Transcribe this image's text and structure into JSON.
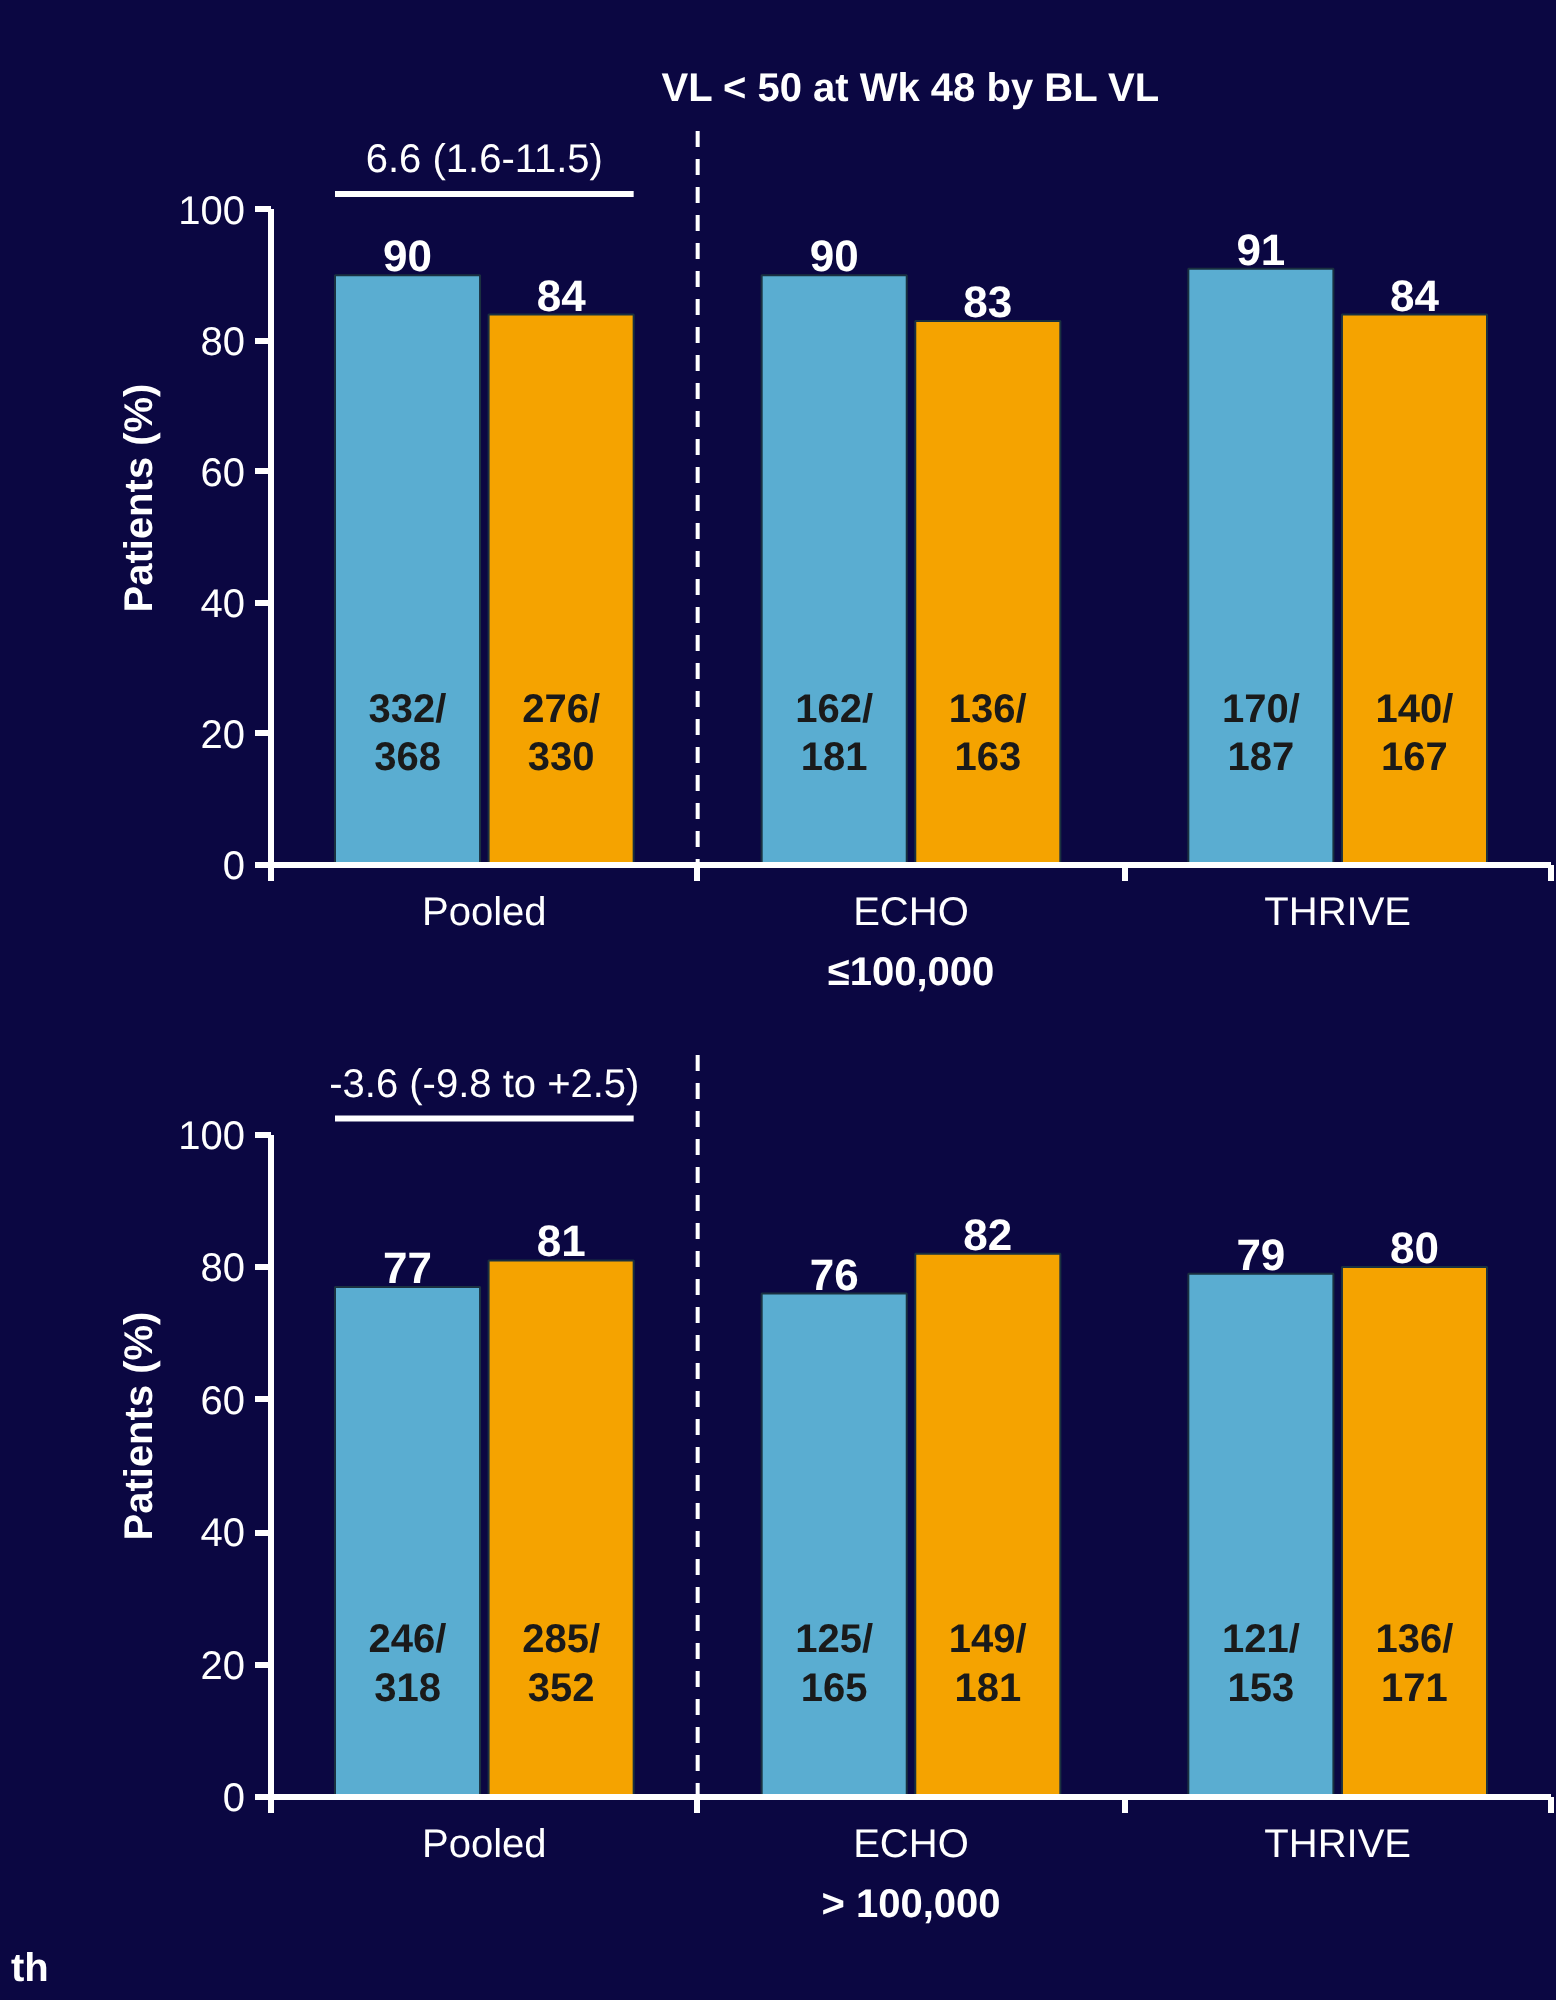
{
  "chart_data": [
    {
      "type": "bar",
      "title": "VL < 50 at Wk 48 by BL VL",
      "xlabel": "≤100,000",
      "ylabel": "Patients (%)",
      "categories": [
        "Pooled",
        "ECHO",
        "THRIVE"
      ],
      "series": [
        {
          "color": "#5aadd1",
          "values": [
            90,
            90,
            91
          ]
        },
        {
          "color": "#f5a300",
          "values": [
            84,
            83,
            84
          ]
        }
      ],
      "ylim": [
        0,
        100
      ],
      "yticks": [
        0,
        20,
        40,
        60,
        80,
        100
      ],
      "data_labels": true,
      "grid": false,
      "annotations": [
        "6.6 (1.6-11.5)",
        "332/\n368",
        "276/\n330",
        "162/\n181",
        "136/\n163",
        "170/\n187",
        "140/\n167"
      ]
    },
    {
      "type": "bar",
      "xlabel": "> 100,000",
      "ylabel": "Patients (%)",
      "categories": [
        "Pooled",
        "ECHO",
        "THRIVE"
      ],
      "series": [
        {
          "color": "#5aadd1",
          "values": [
            77,
            76,
            79
          ]
        },
        {
          "color": "#f5a300",
          "values": [
            81,
            82,
            80
          ]
        }
      ],
      "ylim": [
        0,
        100
      ],
      "yticks": [
        0,
        20,
        40,
        60,
        80,
        100
      ],
      "data_labels": true,
      "grid": false,
      "annotations": [
        "-3.6 (-9.8 to +2.5)",
        "246/\n318",
        "285/\n352",
        "125/\n165",
        "149/\n181",
        "121/\n153",
        "136/\n171",
        "th"
      ]
    }
  ]
}
